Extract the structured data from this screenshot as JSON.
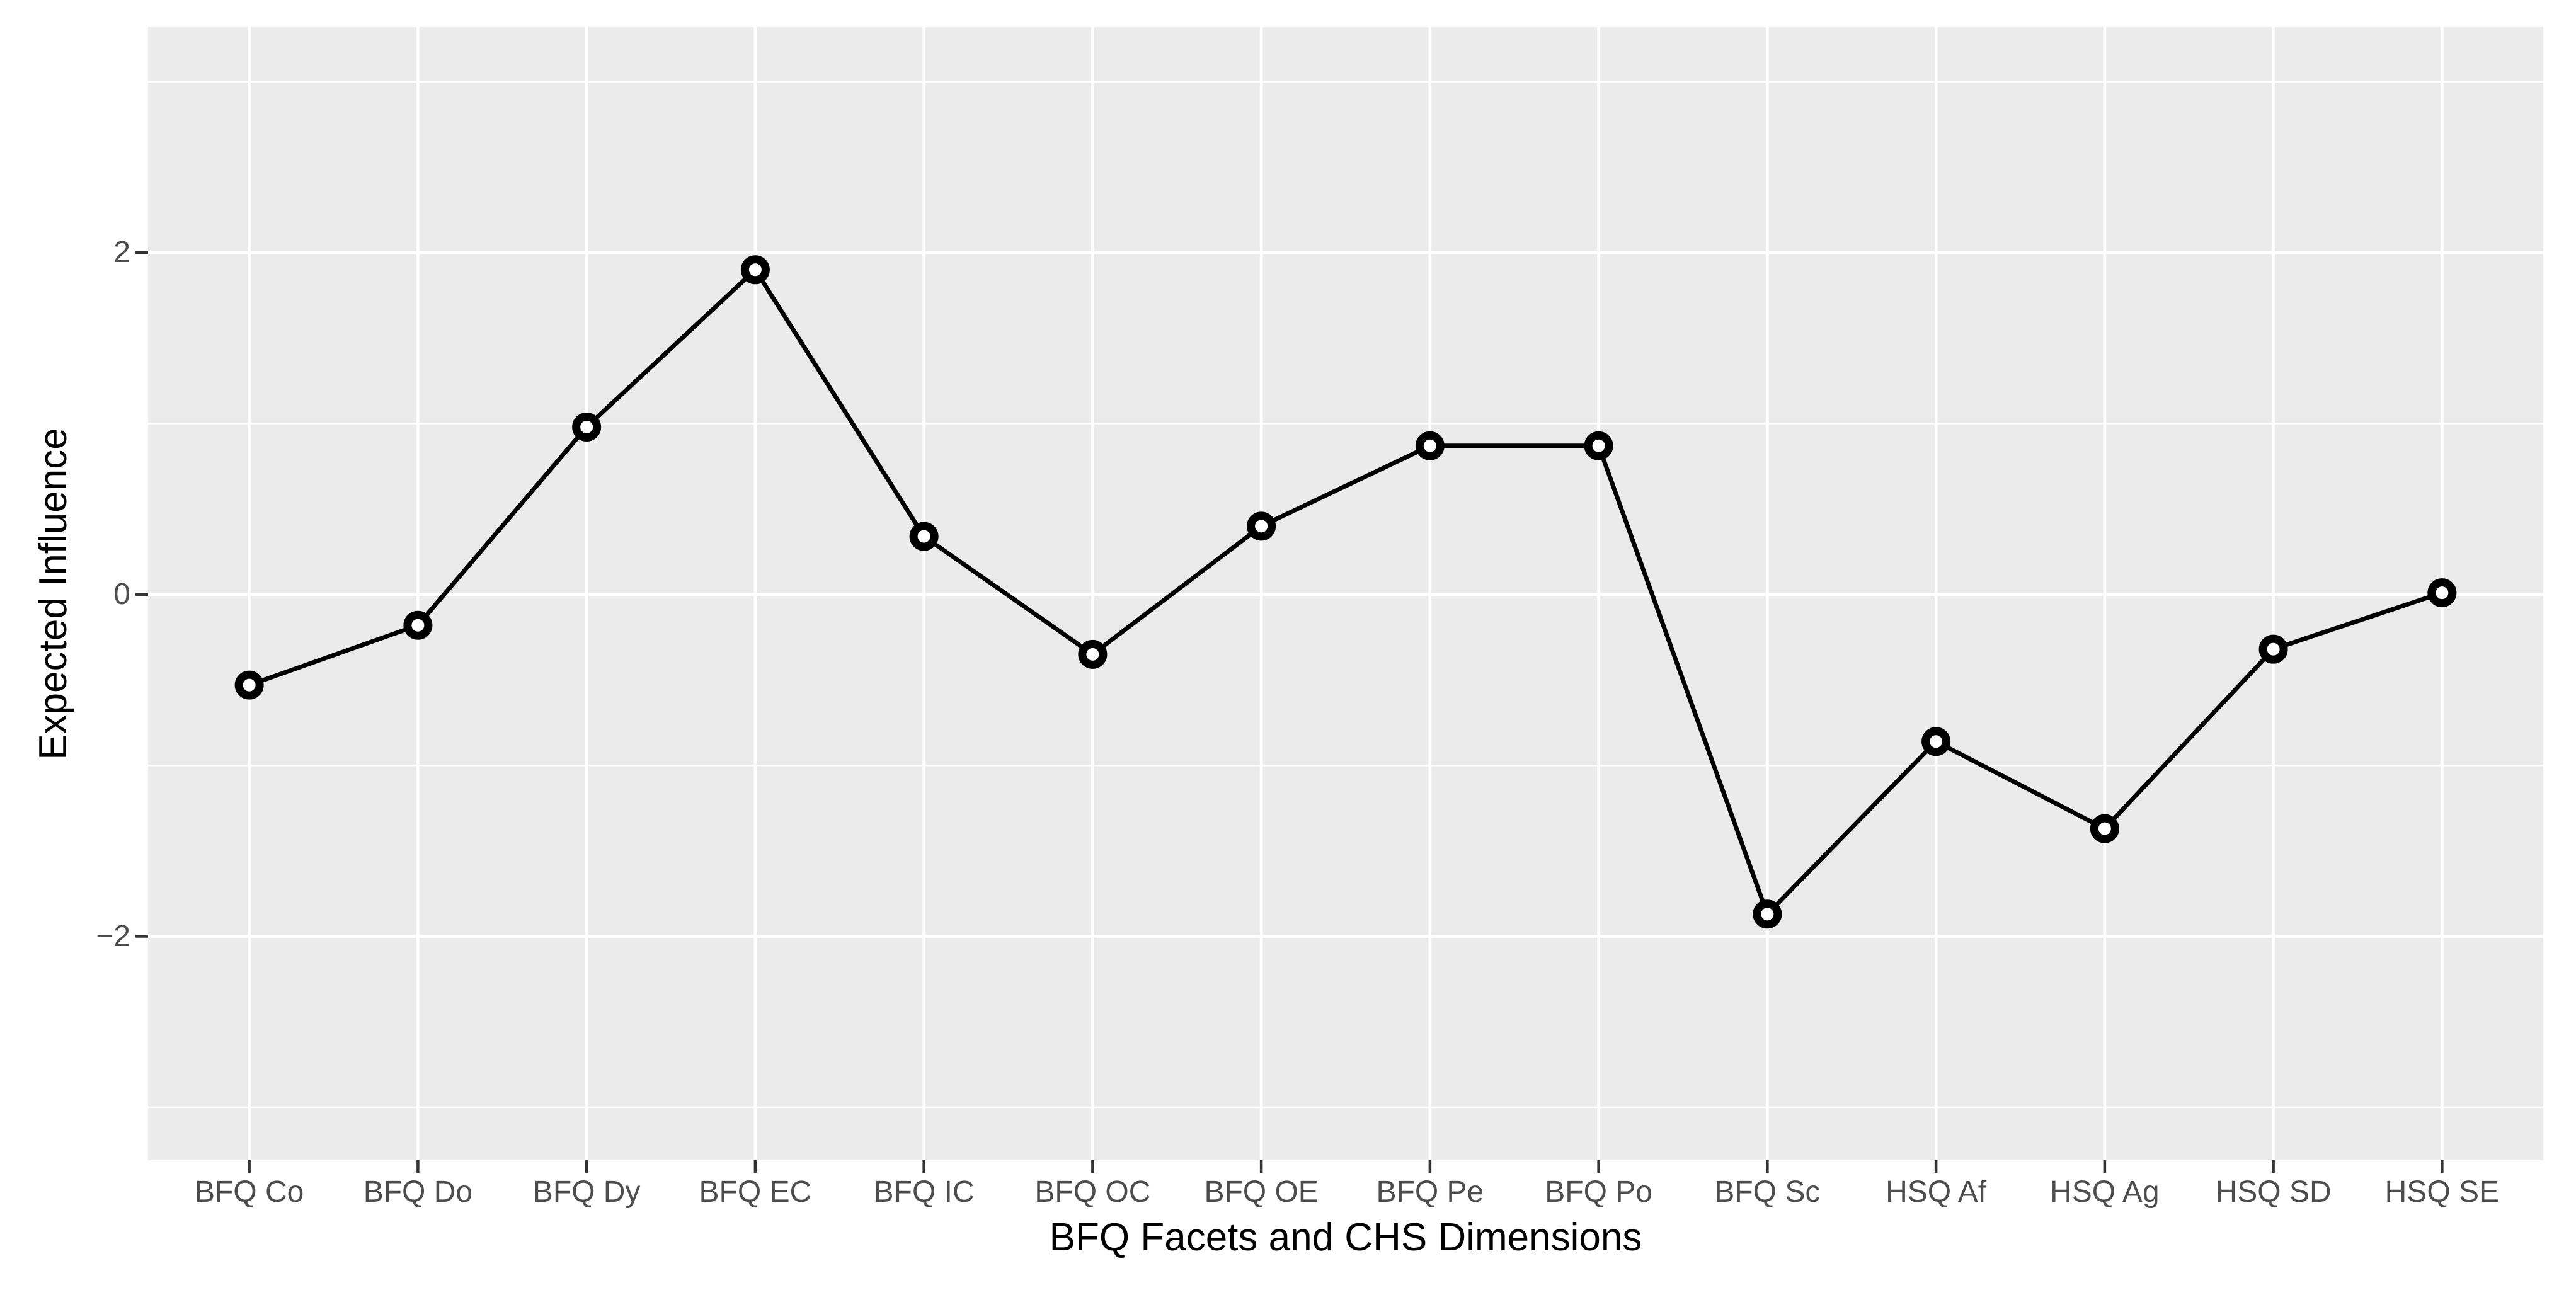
{
  "chart_data": {
    "type": "line",
    "title": "",
    "xlabel": "BFQ Facets and CHS Dimensions",
    "ylabel": "Expected Influence",
    "categories": [
      "BFQ Co",
      "BFQ Do",
      "BFQ Dy",
      "BFQ EC",
      "BFQ IC",
      "BFQ OC",
      "BFQ OE",
      "BFQ Pe",
      "BFQ Po",
      "BFQ Sc",
      "HSQ Af",
      "HSQ Ag",
      "HSQ SD",
      "HSQ SE"
    ],
    "values": [
      -0.53,
      -0.18,
      0.98,
      1.9,
      0.34,
      -0.35,
      0.4,
      0.87,
      0.87,
      -1.87,
      -0.86,
      -1.37,
      -0.32,
      0.01
    ],
    "series_marker": "open-circle",
    "ylim": [
      -3.31,
      3.32
    ],
    "y_major_ticks": [
      2,
      0,
      -2
    ],
    "y_tick_labels": [
      "2",
      "0",
      "−2"
    ],
    "y_minor_gridlines": [
      3,
      1,
      -1,
      -3
    ],
    "grid": "on",
    "legend": "none",
    "colors": {
      "panel_background": "#EBEBEB",
      "gridline": "#FFFFFF",
      "line": "#000000",
      "marker_stroke": "#000000",
      "marker_fill": "#FFFFFF",
      "tick_label": "#4D4D4D",
      "axis_title": "#000000",
      "tick_mark": "#333333"
    }
  }
}
